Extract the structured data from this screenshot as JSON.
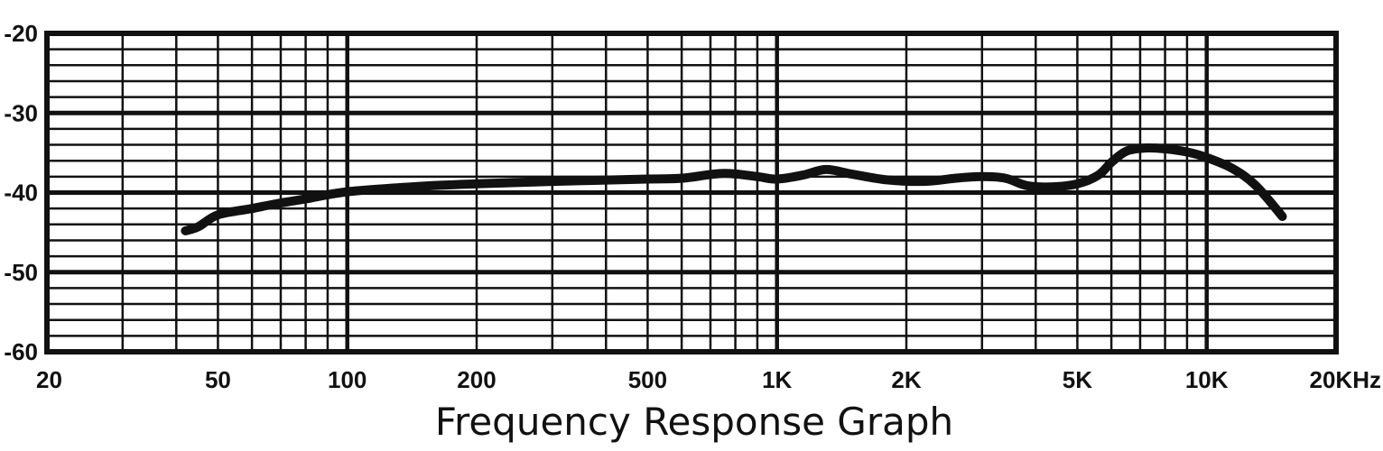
{
  "chart_data": {
    "type": "line",
    "title": "Frequency Response Graph",
    "xlabel": "",
    "ylabel": "",
    "x_scale": "log",
    "xlim": [
      20,
      20000
    ],
    "ylim": [
      -60,
      -20
    ],
    "grid": true,
    "x_ticks": [
      {
        "value": 20,
        "label": "20"
      },
      {
        "value": 50,
        "label": "50"
      },
      {
        "value": 100,
        "label": "100"
      },
      {
        "value": 200,
        "label": "200"
      },
      {
        "value": 500,
        "label": "500"
      },
      {
        "value": 1000,
        "label": "1K"
      },
      {
        "value": 2000,
        "label": "2K"
      },
      {
        "value": 5000,
        "label": "5K"
      },
      {
        "value": 10000,
        "label": "10K"
      },
      {
        "value": 20000,
        "label": "20KHz"
      }
    ],
    "y_ticks": [
      {
        "value": -20,
        "label": "-20"
      },
      {
        "value": -30,
        "label": "-30"
      },
      {
        "value": -40,
        "label": "-40"
      },
      {
        "value": -50,
        "label": "-50"
      },
      {
        "value": -60,
        "label": "-60"
      }
    ],
    "series": [
      {
        "x": [
          42,
          45,
          50,
          60,
          70,
          80,
          100,
          150,
          200,
          300,
          500,
          600,
          750,
          900,
          1000,
          1150,
          1300,
          1500,
          1800,
          2200,
          2600,
          3000,
          3400,
          3800,
          4300,
          5000,
          5600,
          6000,
          6500,
          7200,
          8000,
          9000,
          10000,
          11500,
          13000,
          15000
        ],
        "y": [
          -44.8,
          -44.3,
          -42.8,
          -42.0,
          -41.3,
          -40.8,
          -39.9,
          -39.2,
          -38.9,
          -38.6,
          -38.3,
          -38.2,
          -37.6,
          -38.0,
          -38.3,
          -37.8,
          -37.1,
          -37.7,
          -38.4,
          -38.6,
          -38.2,
          -38.0,
          -38.2,
          -39.1,
          -39.3,
          -38.9,
          -37.8,
          -36.2,
          -34.8,
          -34.4,
          -34.5,
          -34.9,
          -35.6,
          -37.0,
          -39.1,
          -43.0
        ]
      }
    ],
    "line_color": "#111111"
  }
}
